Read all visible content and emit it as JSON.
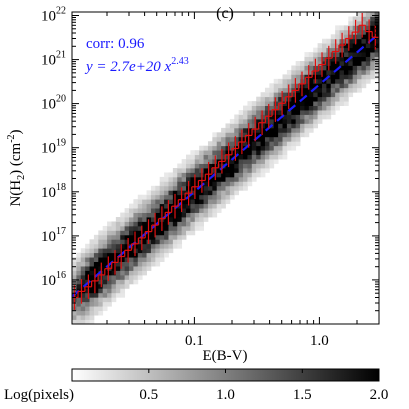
{
  "chart_data": {
    "type": "heatmap",
    "panel_label": "(c)",
    "xlabel": "E(B-V)",
    "ylabel": {
      "base": "N(H",
      "sub": "2",
      "mid": ") (cm",
      "sup": "-2",
      "end": ")"
    },
    "x_scale": "log",
    "y_scale": "log",
    "xlim": [
      0.0105,
      3.0
    ],
    "ylim": [
      1000000000000000.0,
      1.2e+22
    ],
    "x_ticks": [
      {
        "value": 0.1,
        "label": "0.1"
      },
      {
        "value": 1.0,
        "label": "1.0"
      }
    ],
    "y_ticks": [
      {
        "value": 1e+16,
        "base": "10",
        "exp": "16"
      },
      {
        "value": 1e+17,
        "base": "10",
        "exp": "17"
      },
      {
        "value": 1e+18,
        "base": "10",
        "exp": "18"
      },
      {
        "value": 1e+19,
        "base": "10",
        "exp": "19"
      },
      {
        "value": 1e+20,
        "base": "10",
        "exp": "20"
      },
      {
        "value": 1e+21,
        "base": "10",
        "exp": "21"
      },
      {
        "value": 1e+22,
        "base": "10",
        "exp": "22"
      }
    ],
    "annotation": {
      "corr_text": "corr: 0.96",
      "fit_prefix": "y = 2.7e+20 x",
      "fit_exponent": "2.43",
      "color": "#1a1aff"
    },
    "fit": {
      "coefficient": 2.7e+20,
      "exponent": 2.43,
      "color": "#1a1aff",
      "style": "dashed"
    },
    "binned_median": {
      "color": "#e01010",
      "points": [
        [
          0.011,
          4000000000000000.0
        ],
        [
          0.0125,
          5500000000000000.0
        ],
        [
          0.0142,
          7000000000000000.0
        ],
        [
          0.016,
          9500000000000000.0
        ],
        [
          0.018,
          1.3e+16
        ],
        [
          0.0205,
          1.8e+16
        ],
        [
          0.0232,
          2.5e+16
        ],
        [
          0.026,
          3.4e+16
        ],
        [
          0.0295,
          4.7e+16
        ],
        [
          0.0335,
          6.6e+16
        ],
        [
          0.038,
          9e+16
        ],
        [
          0.043,
          1.25e+17
        ],
        [
          0.0485,
          1.75e+17
        ],
        [
          0.055,
          2.45e+17
        ],
        [
          0.062,
          3.4e+17
        ],
        [
          0.07,
          4.7e+17
        ],
        [
          0.079,
          6.6e+17
        ],
        [
          0.09,
          9.3e+17
        ],
        [
          0.101,
          1.3e+18
        ],
        [
          0.115,
          1.8e+18
        ],
        [
          0.13,
          2.5e+18
        ],
        [
          0.147,
          3.5e+18
        ],
        [
          0.166,
          4.9e+18
        ],
        [
          0.188,
          6.9e+18
        ],
        [
          0.213,
          9.6e+18
        ],
        [
          0.24,
          1.35e+19
        ],
        [
          0.272,
          1.9e+19
        ],
        [
          0.307,
          2.65e+19
        ],
        [
          0.348,
          3.7e+19
        ],
        [
          0.393,
          5.2e+19
        ],
        [
          0.445,
          7.3e+19
        ],
        [
          0.503,
          1.02e+20
        ],
        [
          0.569,
          1.43e+20
        ],
        [
          0.643,
          2e+20
        ],
        [
          0.727,
          2.8e+20
        ],
        [
          0.822,
          3.95e+20
        ],
        [
          0.93,
          5.5e+20
        ],
        [
          1.05,
          7.7e+20
        ],
        [
          1.19,
          1.08e+21
        ],
        [
          1.35,
          1.52e+21
        ],
        [
          1.52,
          2.13e+21
        ],
        [
          1.72,
          3e+21
        ],
        [
          1.95,
          4.2e+21
        ],
        [
          2.2,
          6e+21
        ],
        [
          2.5,
          4.3e+21
        ],
        [
          2.8,
          3.2e+21
        ]
      ]
    },
    "density": {
      "colormap": "gray_reversed",
      "x_bins": 70,
      "y_bins": 70,
      "scatter_dex": 0.6
    },
    "colorbar": {
      "label": "Log(pixels)",
      "range": [
        0.0,
        2.0
      ],
      "ticks": [
        "0.5",
        "1.0",
        "1.5",
        "2.0"
      ],
      "tick_values": [
        0.5,
        1.0,
        1.5,
        2.0
      ]
    }
  }
}
